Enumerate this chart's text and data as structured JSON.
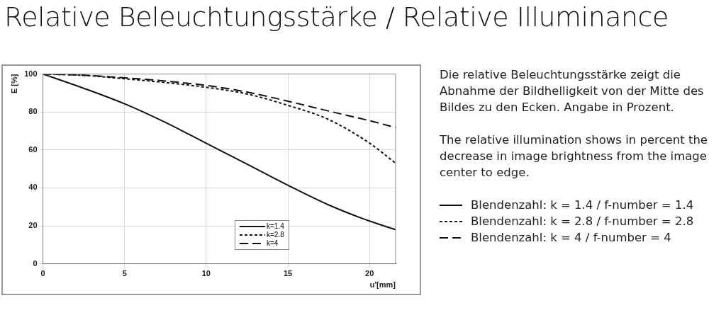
{
  "chart_data": {
    "type": "line",
    "title": "Relative Beleuchtungsstärke / Relative Illuminance",
    "xlabel": "u'[mm]",
    "ylabel": "E [%]",
    "xlim": [
      0,
      21.6
    ],
    "xticks": [
      0,
      5,
      10,
      15,
      20
    ],
    "ylim": [
      0,
      100
    ],
    "yticks": [
      0,
      20,
      40,
      60,
      80,
      100
    ],
    "grid": true,
    "legend": "bottom right",
    "marker": "none",
    "series": [
      {
        "name": "k=1.4",
        "color": "#111111",
        "line_style": "solid",
        "x": [
          0,
          2.5,
          5,
          7.5,
          10,
          12.5,
          15,
          17.5,
          20,
          21.6
        ],
        "values": [
          100,
          92.5,
          84.3,
          74.5,
          63.5,
          52.5,
          41.4,
          31,
          22.5,
          18
        ]
      },
      {
        "name": "k=2.8",
        "color": "#111111",
        "line_style": "dotted",
        "x": [
          0,
          2.5,
          5,
          7.5,
          10,
          12.5,
          15,
          17.5,
          20,
          21.6
        ],
        "values": [
          100,
          99.3,
          97.5,
          95.5,
          93,
          89.5,
          83.5,
          76,
          63.6,
          53
        ]
      },
      {
        "name": "k=4",
        "color": "#111111",
        "line_style": "dashed",
        "x": [
          0,
          2.5,
          5,
          7.5,
          10,
          12.5,
          15,
          17.5,
          20,
          21.6
        ],
        "values": [
          100,
          99.4,
          98,
          96.3,
          94,
          90.5,
          85.7,
          80.5,
          75.4,
          71.8
        ]
      }
    ],
    "annotations": [
      "Die relative Beleuchtungsstärke zeigt die Abnahme der Bildhelligkeit von der Mitte des Bildes zu den Ecken. Angabe in Prozent.",
      "The relative illumination shows in percent the decrease in image brightness from the image center to edge.",
      "Blendenzahl: k = 1.4 / f-number = 1.4",
      "Blendenzahl: k = 2.8 / f-number = 2.8",
      "Blendenzahl: k = 4 / f-number = 4"
    ]
  }
}
